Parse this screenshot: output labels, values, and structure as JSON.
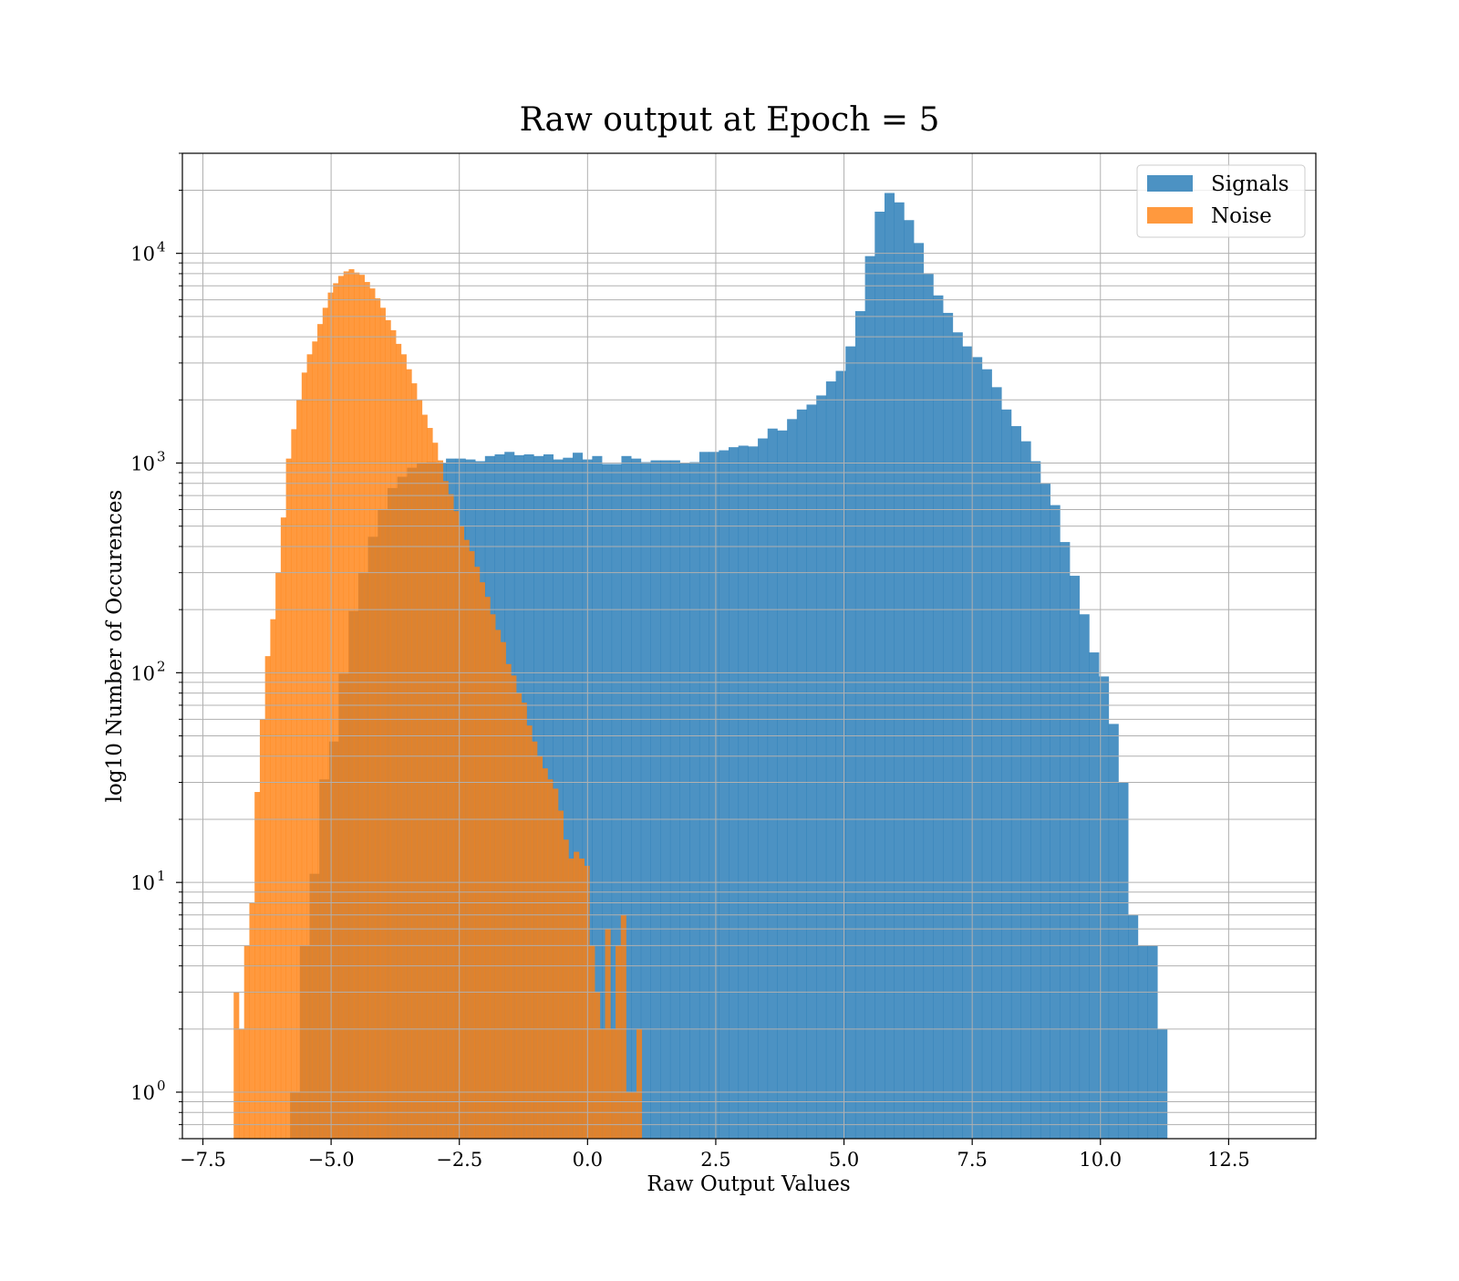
{
  "chart_data": {
    "type": "bar",
    "title": "Raw output at Epoch = 5",
    "xlabel": "Raw Output Values",
    "ylabel": "log10 Number of Occurences",
    "x_log_scale": false,
    "y_log_scale": true,
    "xlim": [
      -7.9,
      14.2
    ],
    "ylim": [
      0.6,
      30000
    ],
    "grid": true,
    "legend_position": "top-right",
    "x_ticks": [
      {
        "value": -7.5,
        "label": "−7.5"
      },
      {
        "value": -5.0,
        "label": "−5.0"
      },
      {
        "value": -2.5,
        "label": "−2.5"
      },
      {
        "value": 0.0,
        "label": "0.0"
      },
      {
        "value": 2.5,
        "label": "2.5"
      },
      {
        "value": 5.0,
        "label": "5.0"
      },
      {
        "value": 7.5,
        "label": "7.5"
      },
      {
        "value": 10.0,
        "label": "10.0"
      },
      {
        "value": 12.5,
        "label": "12.5"
      }
    ],
    "y_ticks": [
      {
        "value": 1,
        "base": "10",
        "exp": "0"
      },
      {
        "value": 10,
        "base": "10",
        "exp": "1"
      },
      {
        "value": 100,
        "base": "10",
        "exp": "2"
      },
      {
        "value": 1000,
        "base": "10",
        "exp": "3"
      },
      {
        "value": 10000,
        "base": "10",
        "exp": "4"
      }
    ],
    "series": [
      {
        "name": "Signals",
        "color": "#1f77b4",
        "opacity": 0.8,
        "bin_start": -5.8,
        "bin_width": 0.19,
        "values": [
          1,
          5,
          11,
          31,
          47,
          99,
          197,
          300,
          445,
          600,
          760,
          860,
          950,
          1000,
          1010,
          1000,
          1050,
          1050,
          1040,
          1020,
          1080,
          1100,
          1130,
          1090,
          1100,
          1080,
          1100,
          1040,
          1060,
          1120,
          1040,
          1080,
          990,
          990,
          1080,
          1050,
          1010,
          1030,
          1030,
          1030,
          1000,
          1010,
          1130,
          1130,
          1150,
          1190,
          1210,
          1200,
          1310,
          1460,
          1430,
          1620,
          1800,
          1900,
          2100,
          2450,
          2750,
          3600,
          5300,
          9700,
          15800,
          19400,
          17500,
          14400,
          11200,
          8000,
          6300,
          5200,
          4200,
          3600,
          3200,
          2800,
          2300,
          1800,
          1500,
          1270,
          1020,
          800,
          630,
          420,
          290,
          190,
          125,
          96,
          57,
          30,
          7,
          5,
          5,
          2
        ]
      },
      {
        "name": "Noise",
        "color": "#ff7f0e",
        "opacity": 0.8,
        "bin_start": -6.9,
        "bin_width": 0.102,
        "values": [
          3,
          2,
          5,
          8,
          27,
          60,
          120,
          180,
          300,
          550,
          1050,
          1450,
          2000,
          2700,
          3300,
          3800,
          4600,
          5500,
          6500,
          7200,
          7800,
          8200,
          8400,
          8100,
          7900,
          7300,
          6800,
          6100,
          5500,
          4800,
          4300,
          3700,
          3300,
          2800,
          2400,
          2000,
          1700,
          1470,
          1250,
          1030,
          820,
          710,
          590,
          500,
          430,
          380,
          320,
          270,
          230,
          190,
          160,
          140,
          110,
          97,
          80,
          72,
          56,
          47,
          40,
          35,
          31,
          28,
          22,
          16,
          13,
          14,
          13,
          12,
          5,
          3,
          2,
          6,
          2,
          5,
          7,
          1,
          1,
          2
        ]
      }
    ]
  }
}
